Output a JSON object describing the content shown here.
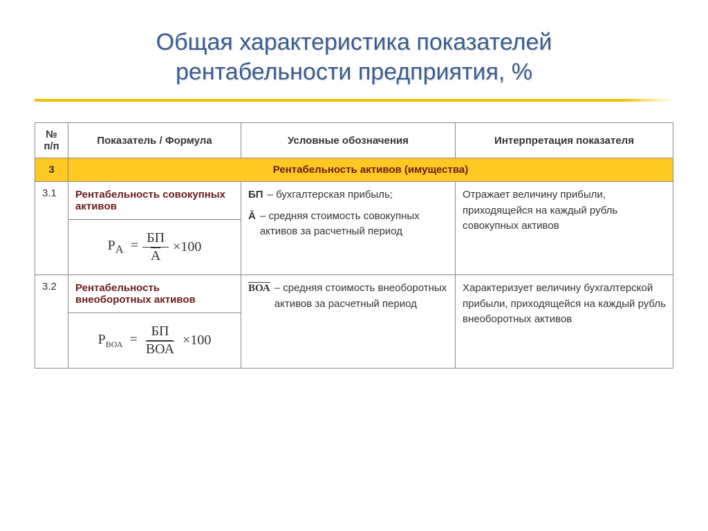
{
  "title": "Общая характеристика показателей\nрентабельности предприятия, %",
  "colors": {
    "title": "#3a5d8f",
    "accent_bar": "#f0c000",
    "section_bg": "#ffc823",
    "section_text": "#6a1b1b",
    "indicator_text": "#6a1b1b",
    "border": "#888888",
    "body_text": "#333333"
  },
  "headers": {
    "num": "№ п/п",
    "indicator": "Показатель / Формула",
    "symbols": "Условные обозначения",
    "interp": "Интерпретация показателя"
  },
  "section": {
    "num": "3",
    "title": "Рентабельность активов (имущества)"
  },
  "rows": [
    {
      "num": "3.1",
      "name": "Рентабельность совокупных активов",
      "formula": {
        "lhs_main": "Р",
        "lhs_sub": "А",
        "frac_top": "БП",
        "frac_bot_overline": "А",
        "tail": "×100"
      },
      "symbols": [
        {
          "key": "БП",
          "desc": "– бухгалтерская прибыль;"
        },
        {
          "key": "Ā",
          "desc": "– средняя стоимость совокупных активов за расчетный период"
        }
      ],
      "interp": "Отражает величину прибыли, приходящейся на каждый рубль совокупных активов"
    },
    {
      "num": "3.2",
      "name": "Рентабельность внеоборотных активов",
      "formula": {
        "lhs_main": "Р",
        "lhs_sub": "ВОА",
        "frac_top": "БП",
        "frac_bot_overline": "ВОА",
        "tail": "×100"
      },
      "symbols": [
        {
          "key_overline": "ВОА",
          "desc": " – средняя стоимость внеоборотных активов за расчетный период"
        }
      ],
      "interp": "Характеризует величину бухгалтерской прибыли, приходящейся на каждый рубль внеоборотных активов"
    }
  ]
}
